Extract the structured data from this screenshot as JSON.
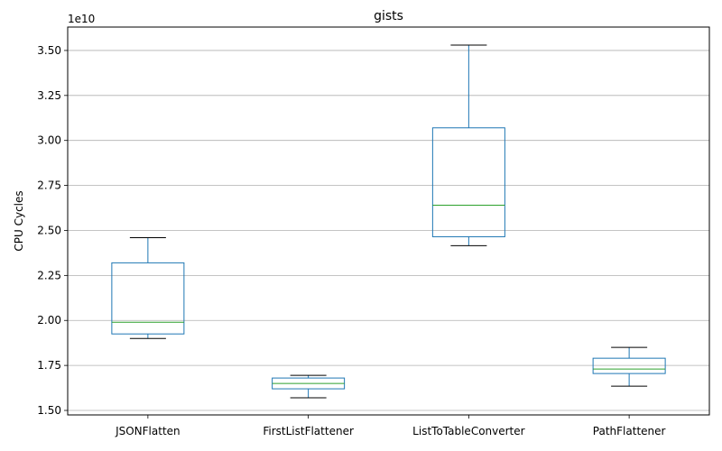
{
  "chart_data": {
    "type": "box",
    "title": "gists",
    "xlabel": "",
    "ylabel": "CPU Cycles",
    "y_offset_label": "1e10",
    "ylim": [
      1.475,
      3.63
    ],
    "yticks": [
      1.5,
      1.75,
      2.0,
      2.25,
      2.5,
      2.75,
      3.0,
      3.25,
      3.5
    ],
    "ytick_labels": [
      "1.50",
      "1.75",
      "2.00",
      "2.25",
      "2.50",
      "2.75",
      "3.00",
      "3.25",
      "3.50"
    ],
    "grid": "horizontal",
    "categories": [
      "JSONFlatten",
      "FirstListFlattener",
      "ListToTableConverter",
      "PathFlattener"
    ],
    "boxes": [
      {
        "whisker_low": 1.9,
        "q1": 1.925,
        "median": 1.99,
        "q3": 2.32,
        "whisker_high": 2.46
      },
      {
        "whisker_low": 1.57,
        "q1": 1.62,
        "median": 1.65,
        "q3": 1.68,
        "whisker_high": 1.695
      },
      {
        "whisker_low": 2.415,
        "q1": 2.465,
        "median": 2.64,
        "q3": 3.07,
        "whisker_high": 3.53
      },
      {
        "whisker_low": 1.635,
        "q1": 1.705,
        "median": 1.73,
        "q3": 1.79,
        "whisker_high": 1.85
      }
    ],
    "colors": {
      "box": "#1f77b4",
      "median": "#2ca02c",
      "whisker_cap": "#000000",
      "grid": "#b0b0b0",
      "axis": "#000000"
    }
  }
}
